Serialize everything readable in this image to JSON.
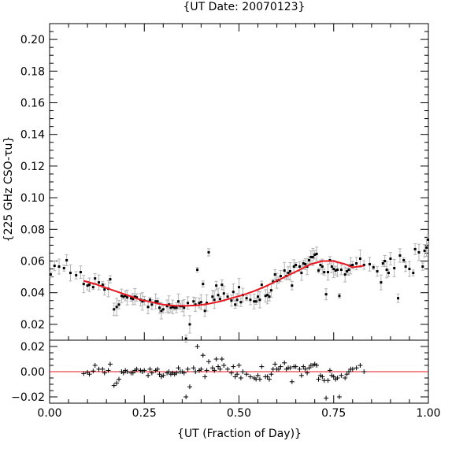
{
  "chart_data": {
    "type": "scatter",
    "title": "{UT Date: 20070123}",
    "xlabel": "{UT (Fraction of Day)}",
    "ylabel": "{225 GHz CSO-τu}",
    "xlim": [
      0.0,
      1.0
    ],
    "ylim": [
      0.01,
      0.21
    ],
    "residual_ylim": [
      -0.025,
      0.025
    ],
    "x_ticks": [
      0.0,
      0.25,
      0.5,
      0.75,
      1.0
    ],
    "x_tick_labels": [
      "0.00",
      "0.25",
      "0.50",
      "0.75",
      "1.00"
    ],
    "y_ticks": [
      0.02,
      0.04,
      0.06,
      0.08,
      0.1,
      0.12,
      0.14,
      0.16,
      0.18,
      0.2
    ],
    "y_tick_labels": [
      "0.02",
      "0.04",
      "0.06",
      "0.08",
      "0.10",
      "0.12",
      "0.14",
      "0.16",
      "0.18",
      "0.20"
    ],
    "residual_ticks": [
      -0.02,
      0.0,
      0.02
    ],
    "residual_tick_labels": [
      "−0.02",
      "0.00",
      "0.02"
    ],
    "colors": {
      "fit": "#e8141e",
      "error_bar": "#b3b3b3",
      "points": "#000000",
      "frame": "#000000"
    },
    "series": [
      {
        "values": [
          [
            0.003,
            0.0515
          ],
          [
            0.013,
            0.057
          ],
          [
            0.025,
            0.0565
          ],
          [
            0.038,
            0.0555
          ],
          [
            0.045,
            0.0605
          ],
          [
            0.055,
            0.0525
          ],
          [
            0.07,
            0.051
          ],
          [
            0.082,
            0.053
          ],
          [
            0.09,
            0.0455
          ],
          [
            0.1,
            0.0445
          ],
          [
            0.105,
            0.045
          ],
          [
            0.115,
            0.0435
          ],
          [
            0.12,
            0.049
          ],
          [
            0.13,
            0.0465
          ],
          [
            0.14,
            0.045
          ],
          [
            0.145,
            0.042
          ],
          [
            0.155,
            0.0425
          ],
          [
            0.16,
            0.0485
          ],
          [
            0.17,
            0.0295
          ],
          [
            0.177,
            0.031
          ],
          [
            0.183,
            0.0325
          ],
          [
            0.19,
            0.038
          ],
          [
            0.195,
            0.0375
          ],
          [
            0.2,
            0.038
          ],
          [
            0.205,
            0.037
          ],
          [
            0.215,
            0.0365
          ],
          [
            0.22,
            0.036
          ],
          [
            0.225,
            0.0375
          ],
          [
            0.23,
            0.037
          ],
          [
            0.24,
            0.0355
          ],
          [
            0.245,
            0.0345
          ],
          [
            0.25,
            0.035
          ],
          [
            0.26,
            0.031
          ],
          [
            0.265,
            0.0355
          ],
          [
            0.27,
            0.0325
          ],
          [
            0.28,
            0.0345
          ],
          [
            0.285,
            0.0345
          ],
          [
            0.29,
            0.0305
          ],
          [
            0.295,
            0.0285
          ],
          [
            0.3,
            0.0295
          ],
          [
            0.31,
            0.0315
          ],
          [
            0.315,
            0.0325
          ],
          [
            0.32,
            0.0305
          ],
          [
            0.325,
            0.031
          ],
          [
            0.33,
            0.0305
          ],
          [
            0.335,
            0.0305
          ],
          [
            0.34,
            0.0345
          ],
          [
            0.345,
            0.0315
          ],
          [
            0.35,
            0.0315
          ],
          [
            0.355,
            0.0305
          ],
          [
            0.36,
            0.011
          ],
          [
            0.365,
            0.0335
          ],
          [
            0.37,
            0.02
          ],
          [
            0.38,
            0.0345
          ],
          [
            0.385,
            0.0325
          ],
          [
            0.39,
            0.0545
          ],
          [
            0.395,
            0.0335
          ],
          [
            0.4,
            0.034
          ],
          [
            0.405,
            0.0455
          ],
          [
            0.41,
            0.0285
          ],
          [
            0.415,
            0.0335
          ],
          [
            0.42,
            0.0655
          ],
          [
            0.43,
            0.0375
          ],
          [
            0.435,
            0.0355
          ],
          [
            0.44,
            0.0445
          ],
          [
            0.445,
            0.0385
          ],
          [
            0.45,
            0.036
          ],
          [
            0.455,
            0.045
          ],
          [
            0.46,
            0.0395
          ],
          [
            0.47,
            0.0375
          ],
          [
            0.48,
            0.035
          ],
          [
            0.485,
            0.0405
          ],
          [
            0.49,
            0.0325
          ],
          [
            0.495,
            0.0355
          ],
          [
            0.5,
            0.0435
          ],
          [
            0.505,
            0.034
          ],
          [
            0.51,
            0.0385
          ],
          [
            0.52,
            0.0365
          ],
          [
            0.53,
            0.0355
          ],
          [
            0.54,
            0.0345
          ],
          [
            0.545,
            0.0345
          ],
          [
            0.55,
            0.0375
          ],
          [
            0.555,
            0.0355
          ],
          [
            0.56,
            0.045
          ],
          [
            0.57,
            0.038
          ],
          [
            0.575,
            0.0385
          ],
          [
            0.58,
            0.0375
          ],
          [
            0.585,
            0.0415
          ],
          [
            0.59,
            0.047
          ],
          [
            0.595,
            0.0515
          ],
          [
            0.6,
            0.0475
          ],
          [
            0.605,
            0.048
          ],
          [
            0.61,
            0.0505
          ],
          [
            0.62,
            0.054
          ],
          [
            0.625,
            0.0505
          ],
          [
            0.63,
            0.0525
          ],
          [
            0.635,
            0.0535
          ],
          [
            0.64,
            0.0445
          ],
          [
            0.645,
            0.0565
          ],
          [
            0.65,
            0.0575
          ],
          [
            0.66,
            0.0565
          ],
          [
            0.665,
            0.0525
          ],
          [
            0.67,
            0.0585
          ],
          [
            0.675,
            0.058
          ],
          [
            0.68,
            0.0565
          ],
          [
            0.685,
            0.0605
          ],
          [
            0.69,
            0.0625
          ],
          [
            0.695,
            0.0625
          ],
          [
            0.7,
            0.064
          ],
          [
            0.705,
            0.0645
          ],
          [
            0.71,
            0.054
          ],
          [
            0.715,
            0.0575
          ],
          [
            0.72,
            0.0565
          ],
          [
            0.725,
            0.053
          ],
          [
            0.73,
            0.039
          ],
          [
            0.735,
            0.053
          ],
          [
            0.74,
            0.0605
          ],
          [
            0.745,
            0.0565
          ],
          [
            0.75,
            0.055
          ],
          [
            0.755,
            0.054
          ],
          [
            0.76,
            0.0545
          ],
          [
            0.765,
            0.038
          ],
          [
            0.77,
            0.0545
          ],
          [
            0.78,
            0.0515
          ],
          [
            0.785,
            0.0535
          ],
          [
            0.79,
            0.0545
          ],
          [
            0.795,
            0.057
          ],
          [
            0.8,
            0.0575
          ],
          [
            0.81,
            0.0585
          ],
          [
            0.82,
            0.0615
          ],
          [
            0.83,
            0.0575
          ],
          [
            0.845,
            0.058
          ],
          [
            0.855,
            0.056
          ],
          [
            0.865,
            0.0535
          ],
          [
            0.875,
            0.0465
          ],
          [
            0.88,
            0.0585
          ],
          [
            0.885,
            0.06
          ],
          [
            0.89,
            0.0545
          ],
          [
            0.895,
            0.0525
          ],
          [
            0.9,
            0.0615
          ],
          [
            0.91,
            0.0555
          ],
          [
            0.92,
            0.0365
          ],
          [
            0.925,
            0.0635
          ],
          [
            0.935,
            0.0605
          ],
          [
            0.94,
            0.0565
          ],
          [
            0.95,
            0.055
          ],
          [
            0.96,
            0.0525
          ],
          [
            0.965,
            0.0675
          ],
          [
            0.975,
            0.0655
          ],
          [
            0.985,
            0.0565
          ],
          [
            0.99,
            0.0665
          ],
          [
            0.995,
            0.0685
          ],
          [
            0.999,
            0.0735
          ]
        ]
      }
    ],
    "fit": {
      "x": [
        0.09,
        0.12,
        0.15,
        0.18,
        0.21,
        0.24,
        0.27,
        0.3,
        0.33,
        0.36,
        0.39,
        0.42,
        0.45,
        0.48,
        0.51,
        0.54,
        0.57,
        0.6,
        0.63,
        0.66,
        0.69,
        0.72,
        0.75,
        0.78,
        0.8,
        0.83
      ],
      "y": [
        0.0475,
        0.0455,
        0.043,
        0.0405,
        0.038,
        0.0355,
        0.034,
        0.0325,
        0.0318,
        0.0317,
        0.032,
        0.033,
        0.0345,
        0.0365,
        0.0385,
        0.041,
        0.044,
        0.0475,
        0.051,
        0.0545,
        0.058,
        0.06,
        0.06,
        0.058,
        0.056,
        0.057
      ]
    },
    "residuals": [
      [
        0.09,
        -0.0015
      ],
      [
        0.1,
        -0.0005
      ],
      [
        0.105,
        -0.002
      ],
      [
        0.115,
        0.0005
      ],
      [
        0.12,
        0.005
      ],
      [
        0.13,
        0.002
      ],
      [
        0.14,
        0.002
      ],
      [
        0.145,
        -0.001
      ],
      [
        0.155,
        0.001
      ],
      [
        0.16,
        0.006
      ],
      [
        0.17,
        -0.011
      ],
      [
        0.177,
        -0.009
      ],
      [
        0.183,
        -0.006
      ],
      [
        0.19,
        0.0
      ],
      [
        0.195,
        -0.001
      ],
      [
        0.2,
        0.001
      ],
      [
        0.205,
        0.0
      ],
      [
        0.215,
        -0.001
      ],
      [
        0.22,
        -0.001
      ],
      [
        0.225,
        0.001
      ],
      [
        0.23,
        0.002
      ],
      [
        0.24,
        0.001
      ],
      [
        0.245,
        0.0
      ],
      [
        0.25,
        0.001
      ],
      [
        0.26,
        -0.003
      ],
      [
        0.265,
        0.002
      ],
      [
        0.27,
        -0.001
      ],
      [
        0.28,
        0.001
      ],
      [
        0.285,
        0.002
      ],
      [
        0.29,
        -0.002
      ],
      [
        0.295,
        -0.004
      ],
      [
        0.3,
        -0.003
      ],
      [
        0.31,
        -0.001
      ],
      [
        0.315,
        0.0
      ],
      [
        0.32,
        -0.002
      ],
      [
        0.325,
        -0.001
      ],
      [
        0.33,
        -0.002
      ],
      [
        0.335,
        -0.001
      ],
      [
        0.34,
        0.003
      ],
      [
        0.345,
        0.0
      ],
      [
        0.35,
        0.0
      ],
      [
        0.355,
        -0.001
      ],
      [
        0.36,
        -0.02
      ],
      [
        0.365,
        0.002
      ],
      [
        0.37,
        -0.012
      ],
      [
        0.38,
        0.003
      ],
      [
        0.385,
        0.0
      ],
      [
        0.39,
        0.02
      ],
      [
        0.395,
        0.001
      ],
      [
        0.4,
        0.002
      ],
      [
        0.405,
        0.013
      ],
      [
        0.41,
        -0.004
      ],
      [
        0.415,
        0.001
      ],
      [
        0.42,
        0.008
      ],
      [
        0.43,
        0.003
      ],
      [
        0.435,
        0.001
      ],
      [
        0.44,
        0.01
      ],
      [
        0.445,
        0.004
      ],
      [
        0.45,
        0.002
      ],
      [
        0.455,
        0.01
      ],
      [
        0.46,
        0.005
      ],
      [
        0.47,
        0.002
      ],
      [
        0.48,
        -0.001
      ],
      [
        0.485,
        0.004
      ],
      [
        0.49,
        -0.004
      ],
      [
        0.495,
        -0.002
      ],
      [
        0.5,
        0.005
      ],
      [
        0.505,
        -0.005
      ],
      [
        0.51,
        0.0
      ],
      [
        0.52,
        -0.002
      ],
      [
        0.53,
        -0.004
      ],
      [
        0.54,
        -0.005
      ],
      [
        0.545,
        -0.006
      ],
      [
        0.55,
        -0.003
      ],
      [
        0.555,
        -0.006
      ],
      [
        0.56,
        0.004
      ],
      [
        0.57,
        -0.004
      ],
      [
        0.575,
        -0.004
      ],
      [
        0.58,
        -0.006
      ],
      [
        0.585,
        -0.002
      ],
      [
        0.59,
        0.002
      ],
      [
        0.595,
        0.006
      ],
      [
        0.6,
        0.002
      ],
      [
        0.605,
        0.002
      ],
      [
        0.61,
        0.004
      ],
      [
        0.62,
        0.007
      ],
      [
        0.625,
        0.002
      ],
      [
        0.63,
        0.003
      ],
      [
        0.635,
        0.003
      ],
      [
        0.64,
        -0.008
      ],
      [
        0.645,
        0.004
      ],
      [
        0.65,
        0.004
      ],
      [
        0.66,
        0.002
      ],
      [
        0.665,
        -0.003
      ],
      [
        0.67,
        0.004
      ],
      [
        0.675,
        0.002
      ],
      [
        0.68,
        -0.001
      ],
      [
        0.685,
        0.003
      ],
      [
        0.69,
        0.005
      ],
      [
        0.695,
        0.005
      ],
      [
        0.7,
        0.006
      ],
      [
        0.705,
        0.005
      ],
      [
        0.71,
        -0.006
      ],
      [
        0.715,
        -0.003
      ],
      [
        0.72,
        -0.004
      ],
      [
        0.725,
        -0.007
      ],
      [
        0.73,
        -0.021
      ],
      [
        0.735,
        -0.007
      ],
      [
        0.74,
        0.001
      ],
      [
        0.745,
        -0.003
      ],
      [
        0.75,
        -0.004
      ],
      [
        0.755,
        -0.006
      ],
      [
        0.76,
        -0.005
      ],
      [
        0.765,
        -0.02
      ],
      [
        0.77,
        -0.003
      ],
      [
        0.78,
        -0.005
      ],
      [
        0.785,
        -0.002
      ],
      [
        0.79,
        0.0
      ],
      [
        0.795,
        0.002
      ],
      [
        0.8,
        0.002
      ],
      [
        0.81,
        0.003
      ],
      [
        0.82,
        0.005
      ],
      [
        0.83,
        0.0
      ]
    ],
    "grid": false,
    "legend": "none"
  }
}
